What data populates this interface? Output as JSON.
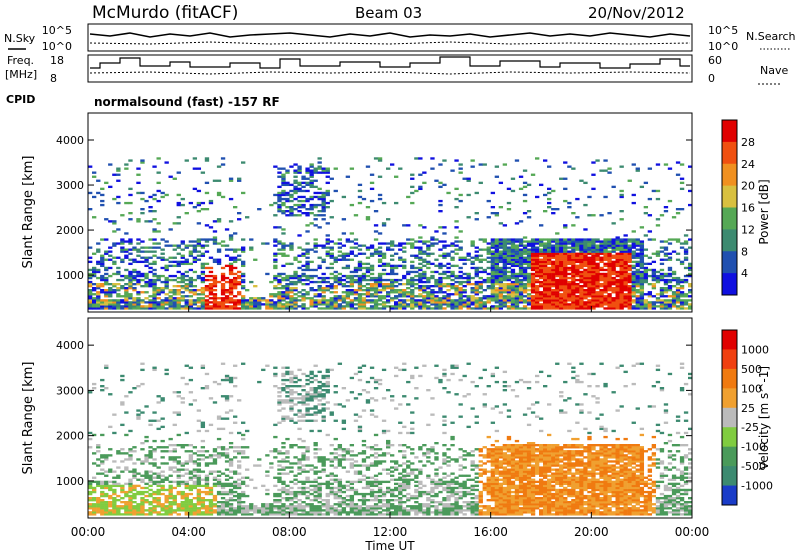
{
  "header": {
    "station": "McMurdo (fitACF)",
    "beam": "Beam 03",
    "date": "20/Nov/2012"
  },
  "params": {
    "nsky_label": "N.Sky",
    "nsearch_label": "N.Search",
    "freq_label_1": "Freq.",
    "freq_label_2": "[MHz]",
    "nave_label": "Nave",
    "cpid_label": "CPID",
    "cpid_value": "normalsound (fast) -157 RF",
    "noise_ticks": [
      "10^5",
      "10^0"
    ],
    "freq_ticks": [
      "18",
      "8"
    ],
    "nave_ticks": [
      "60",
      "0"
    ]
  },
  "chart_data": [
    {
      "type": "heatmap",
      "name": "power",
      "title": "",
      "xlabel": "Time UT",
      "ylabel": "Slant Range [km]",
      "xlim": [
        0,
        24
      ],
      "ylim": [
        180,
        4600
      ],
      "x_ticks": [
        "00:00",
        "04:00",
        "08:00",
        "12:00",
        "16:00",
        "20:00",
        "00:00"
      ],
      "y_ticks": [
        1000,
        2000,
        3000,
        4000
      ],
      "colorbar": {
        "label": "Power [dB]",
        "ticks": [
          4,
          8,
          12,
          16,
          20,
          24,
          28
        ],
        "colors": [
          "#1010e0",
          "#2050b0",
          "#3c8a70",
          "#55a855",
          "#d8c040",
          "#f09020",
          "#f05010",
          "#e00000"
        ]
      }
    },
    {
      "type": "heatmap",
      "name": "velocity",
      "title": "",
      "xlabel": "Time UT",
      "ylabel": "Slant Range [km]",
      "xlim": [
        0,
        24
      ],
      "ylim": [
        180,
        4600
      ],
      "x_ticks": [
        "00:00",
        "04:00",
        "08:00",
        "12:00",
        "16:00",
        "20:00",
        "00:00"
      ],
      "y_ticks": [
        1000,
        2000,
        3000,
        4000
      ],
      "colorbar": {
        "label": "Velocity [m s^-1]",
        "ticks": [
          1000,
          500,
          100,
          25,
          -25,
          -100,
          -500,
          -1000
        ],
        "colors": [
          "#1a3cc8",
          "#3c8a70",
          "#4a9a5a",
          "#80cc40",
          "#bbbbbb",
          "#f0a030",
          "#f07a10",
          "#f04010",
          "#e00000"
        ]
      }
    }
  ]
}
